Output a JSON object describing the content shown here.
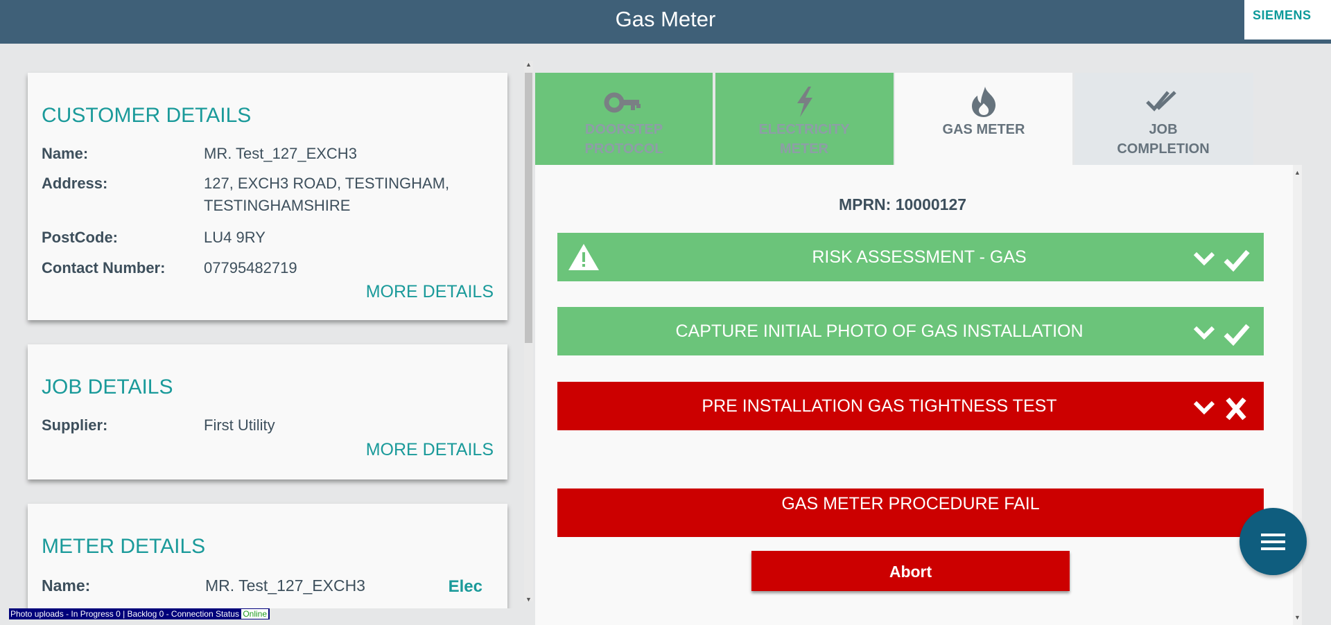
{
  "header": {
    "title": "Gas Meter",
    "brand": "SIEMENS"
  },
  "customer": {
    "title": "CUSTOMER DETAILS",
    "name_label": "Name:",
    "name_value": "MR. Test_127_EXCH3",
    "address_label": "Address:",
    "address_line1": "127, EXCH3 ROAD, TESTINGHAM,",
    "address_line2": "TESTINGHAMSHIRE",
    "postcode_label": "PostCode:",
    "postcode_value": "LU4 9RY",
    "contact_label": "Contact Number:",
    "contact_value": "07795482719",
    "more": "MORE DETAILS"
  },
  "job": {
    "title": "JOB DETAILS",
    "supplier_label": "Supplier:",
    "supplier_value": "First Utility",
    "more": "MORE DETAILS"
  },
  "meter": {
    "title": "METER DETAILS",
    "name_label": "Name:",
    "name_value": "MR. Test_127_EXCH3",
    "elec": "Elec"
  },
  "status_bar": {
    "text": "Photo uploads - In Progress 0 | Backlog 0 - Connection Status",
    "connection": "Online"
  },
  "tabs": [
    {
      "line1": "DOORSTEP",
      "line2": "PROTOCOL",
      "icon": "key-icon",
      "state": "complete"
    },
    {
      "line1": "ELECTRICITY",
      "line2": "METER",
      "icon": "lightning-icon",
      "state": "complete"
    },
    {
      "line1": "GAS METER",
      "line2": "",
      "icon": "flame-icon",
      "state": "active"
    },
    {
      "line1": "JOB",
      "line2": "COMPLETION",
      "icon": "double-check-icon",
      "state": "pending"
    }
  ],
  "content": {
    "mprn": "MPRN: 10000127",
    "steps": [
      {
        "label": "RISK ASSESSMENT - GAS",
        "status": "pass"
      },
      {
        "label": "CAPTURE INITIAL PHOTO OF GAS INSTALLATION",
        "status": "pass"
      },
      {
        "label": "PRE INSTALLATION GAS TIGHTNESS TEST",
        "status": "fail"
      }
    ],
    "fail_message": "GAS METER PROCEDURE FAIL",
    "abort": "Abort"
  },
  "colors": {
    "header": "#3f6078",
    "accent": "#1a9a9a",
    "success": "#6bc47a",
    "danger": "#cc0000",
    "fab": "#0f5d7e"
  }
}
